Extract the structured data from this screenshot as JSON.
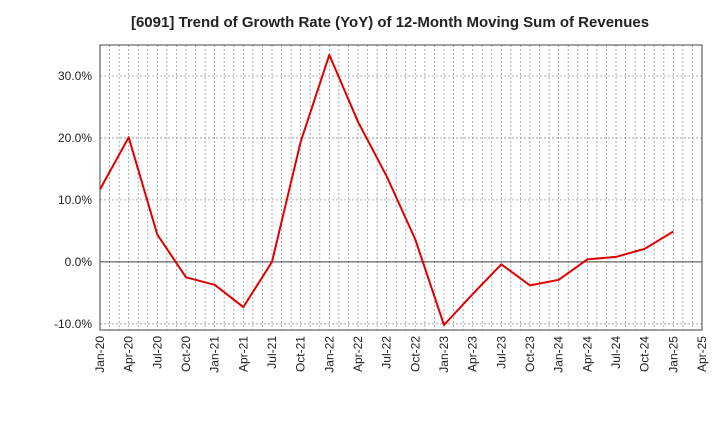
{
  "chart_data": {
    "type": "line",
    "title": "[6091]  Trend of Growth Rate (YoY) of 12-Month Moving Sum of Revenues",
    "xlabel": "",
    "ylabel": "",
    "x_ticks": [
      "Jan-20",
      "Apr-20",
      "Jul-20",
      "Oct-20",
      "Jan-21",
      "Apr-21",
      "Jul-21",
      "Oct-21",
      "Jan-22",
      "Apr-22",
      "Jul-22",
      "Oct-22",
      "Jan-23",
      "Apr-23",
      "Jul-23",
      "Oct-23",
      "Jan-24",
      "Apr-24",
      "Jul-24",
      "Oct-24",
      "Jan-25",
      "Apr-25"
    ],
    "y_ticks": [
      "30.0%",
      "20.0%",
      "10.0%",
      "0.0%",
      "-10.0%"
    ],
    "y_tick_values": [
      30,
      20,
      10,
      0,
      -10
    ],
    "ylim": [
      -11,
      35
    ],
    "grid": true,
    "series": [
      {
        "color": "#e00000",
        "x": [
          "Jan-20",
          "Apr-20",
          "Jul-20",
          "Oct-20",
          "Jan-21",
          "Apr-21",
          "Jul-21",
          "Oct-21",
          "Jan-22",
          "Apr-22",
          "Jul-22",
          "Oct-22",
          "Jan-23",
          "Apr-23",
          "Jul-23",
          "Oct-23",
          "Jan-24",
          "Apr-24",
          "Jul-24",
          "Oct-24",
          "Jan-25"
        ],
        "values": [
          11.7,
          20.1,
          4.4,
          -2.5,
          -3.7,
          -7.3,
          0.0,
          19.4,
          33.4,
          22.6,
          13.8,
          3.6,
          -10.2,
          -5.2,
          -0.4,
          -3.8,
          -2.9,
          0.4,
          0.8,
          2.1,
          4.9
        ]
      }
    ]
  }
}
